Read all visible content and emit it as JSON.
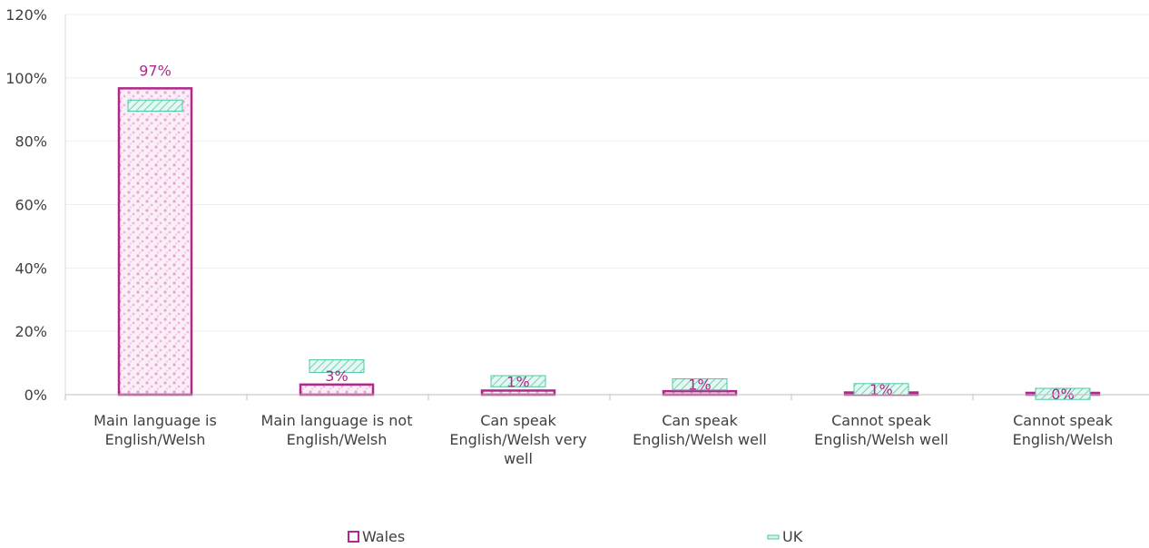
{
  "chart_data": {
    "type": "bar",
    "title": "",
    "xlabel": "",
    "ylabel": "",
    "ylim": [
      0,
      120
    ],
    "yticks": [
      0,
      20,
      40,
      60,
      80,
      100,
      120
    ],
    "ytick_labels": [
      "0%",
      "20%",
      "40%",
      "60%",
      "80%",
      "100%",
      "120%"
    ],
    "grid": true,
    "legend_position": "bottom",
    "categories": [
      [
        "Main language is",
        "English/Welsh"
      ],
      [
        "Main language is not",
        "English/Welsh"
      ],
      [
        "Can speak",
        "English/Welsh very",
        "well"
      ],
      [
        "Can speak",
        "English/Welsh well"
      ],
      [
        "Cannot speak",
        "English/Welsh well"
      ],
      [
        "Cannot speak",
        "English/Welsh"
      ]
    ],
    "series": [
      {
        "name": "Wales",
        "values": [
          96.7,
          3.2,
          1.3,
          1.1,
          0.7,
          0.3
        ],
        "data_labels": [
          "97%",
          "3%",
          "1%",
          "1%",
          "1%",
          "0%"
        ],
        "color": "#b0288a",
        "fill": "#f2d4ea"
      },
      {
        "name": "UK",
        "ranges": [
          [
            89.5,
            93.0
          ],
          [
            7.0,
            11.0
          ],
          [
            2.5,
            6.0
          ],
          [
            1.5,
            5.0
          ],
          [
            0.0,
            3.5
          ],
          [
            -1.5,
            2.0
          ]
        ],
        "color": "#4fc6a7",
        "fill": "#d4f3ea"
      }
    ]
  }
}
